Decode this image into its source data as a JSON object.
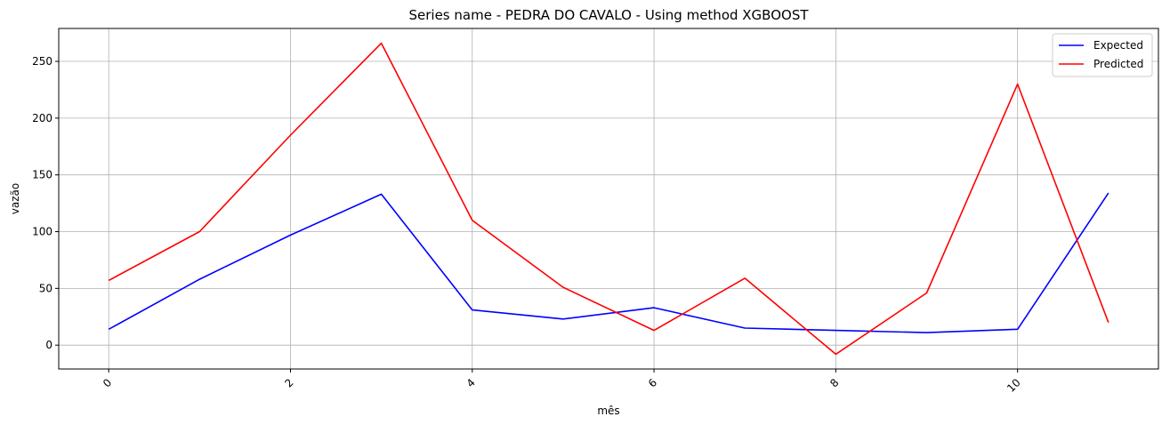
{
  "chart_data": {
    "type": "line",
    "title": "Series name - PEDRA DO CAVALO - Using method XGBOOST",
    "xlabel": "mês",
    "ylabel": "vazão",
    "xlim": [
      -0.55,
      11.55
    ],
    "ylim": [
      -21,
      279
    ],
    "x_ticks": [
      0,
      2,
      4,
      6,
      8,
      10
    ],
    "y_ticks": [
      0,
      50,
      100,
      150,
      200,
      250
    ],
    "grid": true,
    "legend_position": "top-right",
    "x": [
      0,
      1,
      2,
      3,
      4,
      5,
      6,
      7,
      8,
      9,
      10,
      11
    ],
    "series": [
      {
        "name": "Expected",
        "color": "#0000ff",
        "values": [
          14,
          58,
          97,
          133,
          31,
          23,
          33,
          15,
          13,
          11,
          14,
          134
        ]
      },
      {
        "name": "Predicted",
        "color": "#ff0000",
        "values": [
          57,
          100,
          185,
          266,
          110,
          51,
          13,
          59,
          -8,
          46,
          230,
          20
        ]
      }
    ]
  }
}
